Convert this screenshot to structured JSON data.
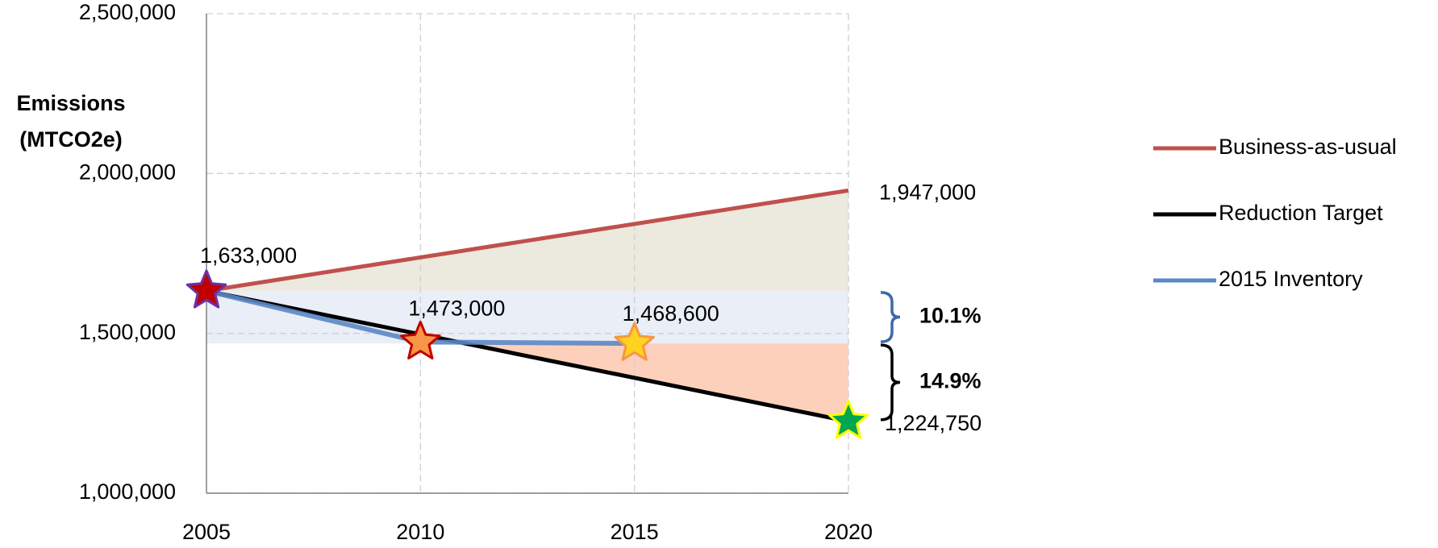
{
  "chart_data": {
    "type": "line",
    "y_label": [
      "Emissions",
      "(MTCO2e)"
    ],
    "xlim": [
      2005,
      2020
    ],
    "xticks": [
      2005,
      2010,
      2015,
      2020
    ],
    "ylim": [
      1000000,
      2500000
    ],
    "yticks": [
      {
        "value": 1000000,
        "label": "1,000,000"
      },
      {
        "value": 1500000,
        "label": "1,500,000"
      },
      {
        "value": 2000000,
        "label": "2,000,000"
      },
      {
        "value": 2500000,
        "label": "2,500,000"
      }
    ],
    "grid": true,
    "legend": "right",
    "series": [
      {
        "name": "Business-as-usual",
        "color": "#c0504d",
        "x": [
          2005,
          2020
        ],
        "values": [
          1633000,
          1947000
        ]
      },
      {
        "name": "Reduction Target",
        "color": "#000000",
        "x": [
          2005,
          2020
        ],
        "values": [
          1633000,
          1224750
        ]
      },
      {
        "name": "2015 Inventory",
        "color": "#5b87c5",
        "x": [
          2005,
          2010,
          2015
        ],
        "values": [
          1633000,
          1473000,
          1468600
        ]
      }
    ],
    "stars": {
      "x": [
        2005,
        2010,
        2015,
        2020
      ],
      "values": [
        1633000,
        1473000,
        1468600,
        1224750
      ],
      "value_labels": [
        "1,633,000",
        "1,473,000",
        "1,468,600",
        "1,224,750"
      ],
      "colors": [
        "#c00000",
        "#f79646",
        "#ffd21f",
        "#00a651"
      ],
      "outline_colors": [
        "#7030a0",
        "#c00000",
        "#f79646",
        "#ffff00"
      ],
      "label_colors": [
        "#000000",
        "#7f7f7f",
        "#7f7f7f",
        "#000000"
      ]
    },
    "annotations": [
      {
        "text": "1,947,000",
        "x": 2020,
        "value": 1947000,
        "color": "#e6a0a0"
      }
    ],
    "brackets": [
      {
        "text": "10.1%",
        "from": 1633000,
        "to": 1468600,
        "color": "#3f6aa8"
      },
      {
        "text": "14.9%",
        "from": 1468600,
        "to": 1224750,
        "color": "#000000"
      }
    ]
  }
}
